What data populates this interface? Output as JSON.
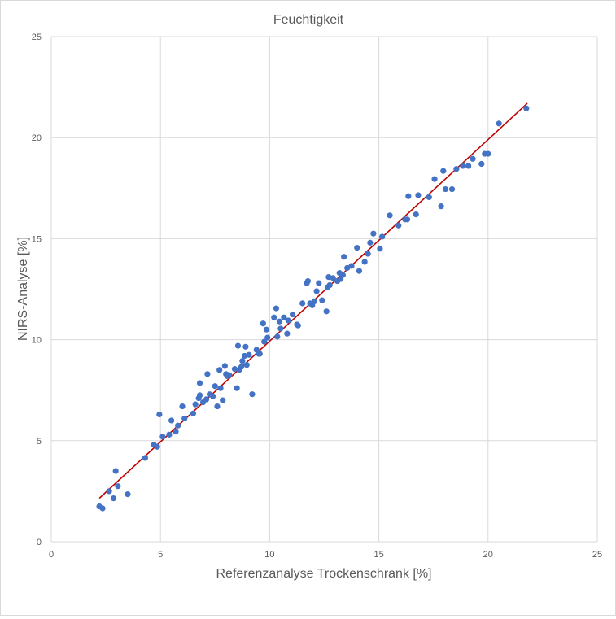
{
  "chart_data": {
    "type": "scatter",
    "title": "Feuchtigkeit",
    "xlabel": "Referenzanalyse Trockenschrank [%]",
    "ylabel": "NIRS-Analyse [%]",
    "xlim": [
      0,
      25
    ],
    "ylim": [
      0,
      25
    ],
    "xticks": [
      "0",
      "5",
      "10",
      "15",
      "20",
      "25"
    ],
    "yticks": [
      "0",
      "5",
      "10",
      "15",
      "20",
      "25"
    ],
    "grid": true,
    "legend": "none",
    "point_color": "#4472c4",
    "trendline_color": "#c00000",
    "trendline": {
      "x": [
        2.2,
        21.8
      ],
      "y": [
        2.15,
        21.7
      ]
    },
    "points": [
      [
        2.2,
        1.75
      ],
      [
        2.35,
        1.65
      ],
      [
        2.65,
        2.5
      ],
      [
        2.85,
        2.15
      ],
      [
        2.95,
        3.5
      ],
      [
        3.05,
        2.75
      ],
      [
        3.5,
        2.35
      ],
      [
        4.3,
        4.15
      ],
      [
        4.7,
        4.8
      ],
      [
        4.85,
        4.7
      ],
      [
        4.95,
        6.3
      ],
      [
        5.1,
        5.2
      ],
      [
        5.4,
        5.3
      ],
      [
        5.5,
        6.0
      ],
      [
        5.7,
        5.45
      ],
      [
        5.8,
        5.75
      ],
      [
        6.0,
        6.7
      ],
      [
        6.1,
        6.1
      ],
      [
        6.5,
        6.35
      ],
      [
        6.6,
        6.8
      ],
      [
        6.75,
        7.1
      ],
      [
        6.8,
        7.25
      ],
      [
        6.8,
        7.85
      ],
      [
        6.95,
        6.9
      ],
      [
        7.1,
        7.05
      ],
      [
        7.15,
        8.3
      ],
      [
        7.25,
        7.3
      ],
      [
        7.4,
        7.2
      ],
      [
        7.5,
        7.7
      ],
      [
        7.6,
        6.7
      ],
      [
        7.7,
        8.5
      ],
      [
        7.75,
        7.6
      ],
      [
        7.85,
        7.0
      ],
      [
        7.95,
        8.7
      ],
      [
        8.0,
        8.3
      ],
      [
        8.05,
        8.2
      ],
      [
        8.15,
        8.25
      ],
      [
        8.4,
        8.55
      ],
      [
        8.5,
        7.6
      ],
      [
        8.55,
        9.7
      ],
      [
        8.6,
        8.5
      ],
      [
        8.7,
        8.65
      ],
      [
        8.75,
        8.95
      ],
      [
        8.85,
        9.2
      ],
      [
        8.9,
        9.65
      ],
      [
        8.95,
        8.75
      ],
      [
        9.05,
        9.25
      ],
      [
        9.2,
        7.3
      ],
      [
        9.4,
        9.5
      ],
      [
        9.5,
        9.3
      ],
      [
        9.55,
        9.3
      ],
      [
        9.7,
        10.8
      ],
      [
        9.75,
        9.9
      ],
      [
        9.85,
        10.5
      ],
      [
        9.9,
        10.1
      ],
      [
        10.2,
        11.1
      ],
      [
        10.3,
        11.55
      ],
      [
        10.35,
        10.15
      ],
      [
        10.45,
        10.9
      ],
      [
        10.5,
        10.55
      ],
      [
        10.65,
        11.1
      ],
      [
        10.8,
        10.3
      ],
      [
        10.85,
        10.95
      ],
      [
        11.05,
        11.25
      ],
      [
        11.25,
        10.75
      ],
      [
        11.3,
        10.7
      ],
      [
        11.5,
        11.8
      ],
      [
        11.7,
        12.8
      ],
      [
        11.75,
        12.9
      ],
      [
        11.85,
        11.8
      ],
      [
        11.95,
        11.7
      ],
      [
        12.05,
        11.9
      ],
      [
        12.15,
        12.4
      ],
      [
        12.25,
        12.8
      ],
      [
        12.4,
        11.95
      ],
      [
        12.6,
        11.4
      ],
      [
        12.65,
        12.6
      ],
      [
        12.75,
        12.7
      ],
      [
        12.7,
        13.1
      ],
      [
        12.9,
        13.05
      ],
      [
        13.1,
        12.9
      ],
      [
        13.2,
        13.3
      ],
      [
        13.25,
        13.0
      ],
      [
        13.35,
        13.2
      ],
      [
        13.4,
        14.1
      ],
      [
        13.55,
        13.55
      ],
      [
        13.75,
        13.65
      ],
      [
        14.0,
        14.55
      ],
      [
        14.1,
        13.4
      ],
      [
        14.35,
        13.85
      ],
      [
        14.5,
        14.25
      ],
      [
        14.6,
        14.8
      ],
      [
        14.75,
        15.25
      ],
      [
        15.05,
        14.5
      ],
      [
        15.15,
        15.1
      ],
      [
        15.5,
        16.15
      ],
      [
        15.9,
        15.65
      ],
      [
        16.2,
        15.95
      ],
      [
        16.3,
        15.95
      ],
      [
        16.35,
        17.1
      ],
      [
        16.7,
        16.2
      ],
      [
        16.8,
        17.15
      ],
      [
        17.3,
        17.05
      ],
      [
        17.55,
        17.95
      ],
      [
        17.85,
        16.6
      ],
      [
        17.95,
        18.35
      ],
      [
        18.05,
        17.45
      ],
      [
        18.35,
        17.45
      ],
      [
        18.55,
        18.45
      ],
      [
        18.85,
        18.6
      ],
      [
        19.1,
        18.6
      ],
      [
        19.3,
        18.95
      ],
      [
        19.7,
        18.7
      ],
      [
        19.85,
        19.2
      ],
      [
        20.0,
        19.2
      ],
      [
        20.5,
        20.7
      ],
      [
        21.75,
        21.45
      ]
    ]
  }
}
